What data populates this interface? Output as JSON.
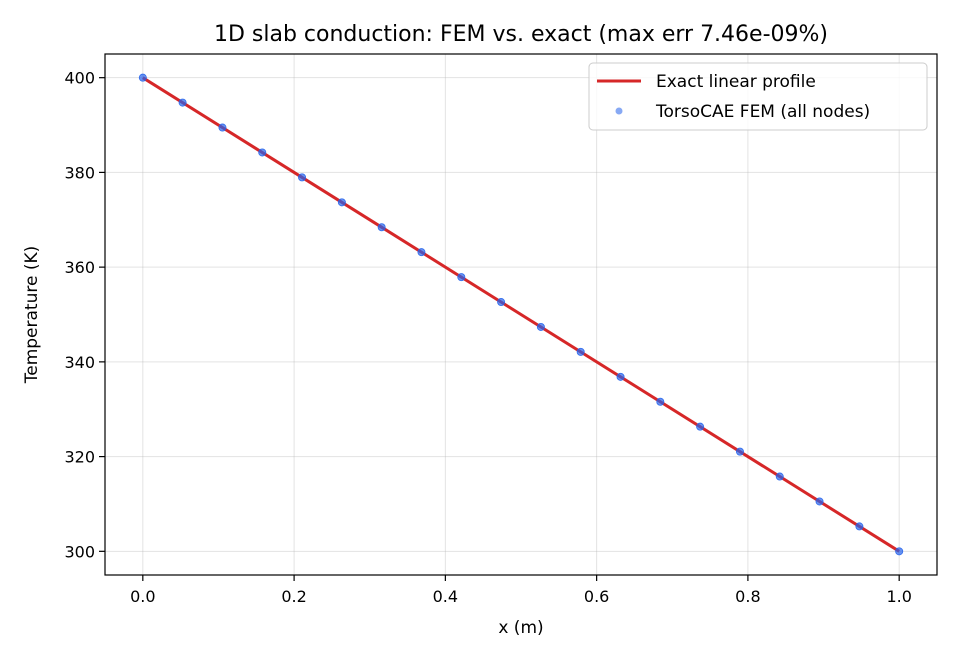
{
  "chart_data": {
    "type": "line",
    "title": "1D slab conduction: FEM vs. exact (max err 7.46e-09%)",
    "xlabel": "x (m)",
    "ylabel": "Temperature (K)",
    "xlim": [
      -0.05,
      1.05
    ],
    "ylim": [
      295,
      405
    ],
    "xticks": [
      0.0,
      0.2,
      0.4,
      0.6,
      0.8,
      1.0
    ],
    "xtick_labels": [
      "0.0",
      "0.2",
      "0.4",
      "0.6",
      "0.8",
      "1.0"
    ],
    "yticks": [
      300,
      320,
      340,
      360,
      380,
      400
    ],
    "ytick_labels": [
      "300",
      "320",
      "340",
      "360",
      "380",
      "400"
    ],
    "grid": true,
    "legend_position": "top-right",
    "series": [
      {
        "name": "Exact linear profile",
        "kind": "line",
        "color": "#d62728",
        "x": [
          0.0,
          1.0
        ],
        "y": [
          400,
          300
        ]
      },
      {
        "name": "TorsoCAE FEM (all nodes)",
        "kind": "scatter",
        "color": "#2563eb",
        "x": [
          0.0,
          0.0526,
          0.1053,
          0.1579,
          0.2105,
          0.2632,
          0.3158,
          0.3684,
          0.4211,
          0.4737,
          0.5263,
          0.5789,
          0.6316,
          0.6842,
          0.7368,
          0.7895,
          0.8421,
          0.8947,
          0.9474,
          1.0
        ],
        "y": [
          400.0,
          394.74,
          389.47,
          384.21,
          378.95,
          373.68,
          368.42,
          363.16,
          357.89,
          352.63,
          347.37,
          342.11,
          336.84,
          331.58,
          326.32,
          321.05,
          315.79,
          310.53,
          305.26,
          300.0
        ]
      }
    ]
  }
}
